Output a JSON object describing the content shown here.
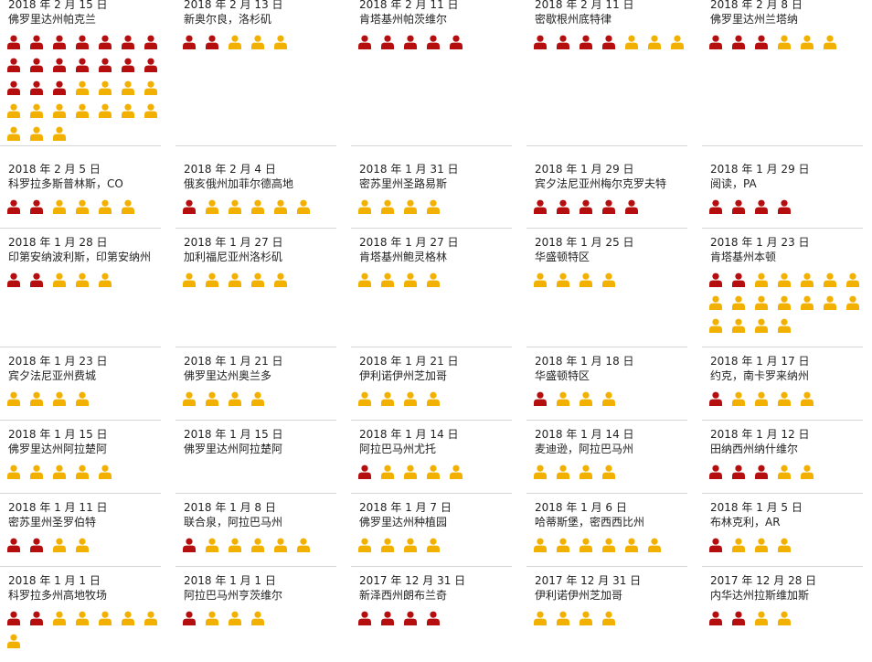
{
  "colors": {
    "killed": "#b40e0e",
    "injured": "#f2b100",
    "divider": "#d6d6d6",
    "text": "#222222"
  },
  "legend_semantics": {
    "red": "person-icon-red",
    "yellow": "person-icon-yellow"
  },
  "incidents": [
    {
      "date": "2018 年 2 月 15 日",
      "location": "佛罗里达州帕克兰",
      "red": 17,
      "yellow": 14
    },
    {
      "date": "2018 年 2 月 13 日",
      "location": "新奥尔良，洛杉矶",
      "red": 2,
      "yellow": 3
    },
    {
      "date": "2018 年 2 月 11 日",
      "location": "肯塔基州帕茨维尔",
      "red": 5,
      "yellow": 0
    },
    {
      "date": "2018 年 2 月 11 日",
      "location": "密歇根州底特律",
      "red": 4,
      "yellow": 3
    },
    {
      "date": "2018 年 2 月 8 日",
      "location": "佛罗里达州兰塔纳",
      "red": 3,
      "yellow": 3
    },
    {
      "date": "2018 年 2 月 5 日",
      "location": "科罗拉多斯普林斯，CO",
      "red": 2,
      "yellow": 4
    },
    {
      "date": "2018 年 2 月 4 日",
      "location": "俄亥俄州加菲尔德高地",
      "red": 1,
      "yellow": 5
    },
    {
      "date": "2018 年 1 月 31 日",
      "location": "密苏里州圣路易斯",
      "red": 0,
      "yellow": 4
    },
    {
      "date": "2018 年 1 月 29 日",
      "location": "宾夕法尼亚州梅尔克罗夫特",
      "red": 5,
      "yellow": 0
    },
    {
      "date": "2018 年 1 月 29 日",
      "location": "阅读，PA",
      "red": 4,
      "yellow": 0
    },
    {
      "date": "2018 年 1 月 28 日",
      "location": "印第安纳波利斯，印第安纳州",
      "red": 2,
      "yellow": 3
    },
    {
      "date": "2018 年 1 月 27 日",
      "location": "加利福尼亚州洛杉矶",
      "red": 0,
      "yellow": 5
    },
    {
      "date": "2018 年 1 月 27 日",
      "location": "肯塔基州鲍灵格林",
      "red": 0,
      "yellow": 4
    },
    {
      "date": "2018 年 1 月 25 日",
      "location": "华盛顿特区",
      "red": 0,
      "yellow": 4
    },
    {
      "date": "2018 年 1 月 23 日",
      "location": "肯塔基州本顿",
      "red": 2,
      "yellow": 16
    },
    {
      "date": "2018 年 1 月 23 日",
      "location": "宾夕法尼亚州费城",
      "red": 0,
      "yellow": 4
    },
    {
      "date": "2018 年 1 月 21 日",
      "location": "佛罗里达州奥兰多",
      "red": 0,
      "yellow": 4
    },
    {
      "date": "2018 年 1 月 21 日",
      "location": "伊利诺伊州芝加哥",
      "red": 0,
      "yellow": 4
    },
    {
      "date": "2018 年 1 月 18 日",
      "location": "华盛顿特区",
      "red": 1,
      "yellow": 3
    },
    {
      "date": "2018 年 1 月 17 日",
      "location": "约克，南卡罗来纳州",
      "red": 1,
      "yellow": 4
    },
    {
      "date": "2018 年 1 月 15 日",
      "location": "佛罗里达州阿拉楚阿",
      "red": 0,
      "yellow": 5
    },
    {
      "date": "2018 年 1 月 15 日",
      "location": "佛罗里达州阿拉楚阿",
      "red": 0,
      "yellow": 0
    },
    {
      "date": "2018 年 1 月 14 日",
      "location": "阿拉巴马州尤托",
      "red": 1,
      "yellow": 4
    },
    {
      "date": "2018 年 1 月 14 日",
      "location": "麦迪逊，阿拉巴马州",
      "red": 0,
      "yellow": 4
    },
    {
      "date": "2018 年 1 月 12 日",
      "location": "田纳西州纳什维尔",
      "red": 3,
      "yellow": 2
    },
    {
      "date": "2018 年 1 月 11 日",
      "location": "密苏里州圣罗伯特",
      "red": 2,
      "yellow": 2
    },
    {
      "date": "2018 年 1 月 8 日",
      "location": "联合泉，阿拉巴马州",
      "red": 1,
      "yellow": 5
    },
    {
      "date": "2018 年 1 月 7 日",
      "location": "佛罗里达州种植园",
      "red": 0,
      "yellow": 4
    },
    {
      "date": "2018 年 1 月 6 日",
      "location": "哈蒂斯堡，密西西比州",
      "red": 0,
      "yellow": 6
    },
    {
      "date": "2018 年 1 月 5 日",
      "location": "布林克利，AR",
      "red": 1,
      "yellow": 3
    },
    {
      "date": "2018 年 1 月 1 日",
      "location": "科罗拉多州高地牧场",
      "red": 2,
      "yellow": 6
    },
    {
      "date": "2018 年 1 月 1 日",
      "location": "阿拉巴马州亨茨维尔",
      "red": 1,
      "yellow": 3
    },
    {
      "date": "2017 年 12 月 31 日",
      "location": "新泽西州朗布兰奇",
      "red": 4,
      "yellow": 0
    },
    {
      "date": "2017 年 12 月 31 日",
      "location": "伊利诺伊州芝加哥",
      "red": 0,
      "yellow": 4
    },
    {
      "date": "2017 年 12 月 28 日",
      "location": "内华达州拉斯维加斯",
      "red": 2,
      "yellow": 2
    }
  ]
}
